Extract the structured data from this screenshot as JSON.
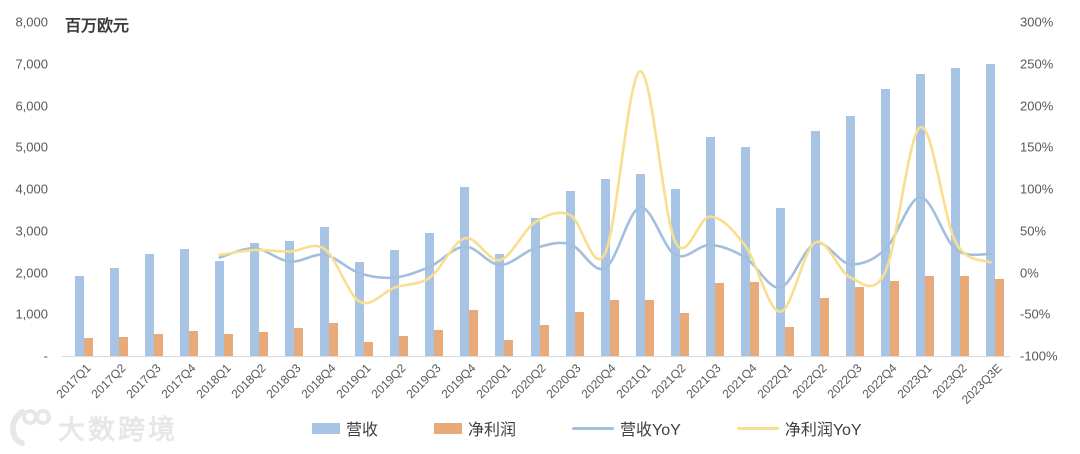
{
  "chart": {
    "watermark_text": "大数跨境"
  },
  "chart_data": {
    "type": "combo",
    "title": "",
    "categories": [
      "2017Q1",
      "2017Q2",
      "2017Q3",
      "2017Q4",
      "2018Q1",
      "2018Q2",
      "2018Q3",
      "2018Q4",
      "2019Q1",
      "2019Q2",
      "2019Q3",
      "2019Q4",
      "2020Q1",
      "2020Q2",
      "2020Q3",
      "2020Q4",
      "2021Q1",
      "2021Q2",
      "2021Q3",
      "2021Q4",
      "2022Q1",
      "2022Q2",
      "2022Q3",
      "2022Q4",
      "2023Q1",
      "2023Q2",
      "2023Q3E"
    ],
    "series": [
      {
        "name": "营收",
        "type": "bar",
        "axis": "left",
        "color": "#A8C4E5",
        "values": [
          1920,
          2100,
          2440,
          2560,
          2270,
          2700,
          2750,
          3100,
          2240,
          2550,
          2950,
          4050,
          2450,
          3300,
          3950,
          4250,
          4350,
          4000,
          5250,
          5000,
          3550,
          5400,
          5750,
          6400,
          6750,
          6900,
          7000
        ]
      },
      {
        "name": "净利润",
        "type": "bar",
        "axis": "left",
        "color": "#E9AA7A",
        "values": [
          430,
          450,
          530,
          610,
          520,
          570,
          660,
          780,
          340,
          470,
          620,
          1100,
          390,
          750,
          1050,
          1350,
          1330,
          1030,
          1750,
          1780,
          700,
          1400,
          1650,
          1800,
          1920,
          1920,
          1850
        ]
      },
      {
        "name": "营收YoY",
        "type": "line",
        "axis": "right",
        "color": "#A4BEDE",
        "values": [
          null,
          null,
          null,
          null,
          18,
          29,
          13,
          21,
          -1,
          -6,
          7,
          31,
          9,
          29,
          34,
          5,
          78,
          21,
          33,
          18,
          -18,
          35,
          10,
          28,
          90,
          28,
          22
        ]
      },
      {
        "name": "净利润YoY",
        "type": "line",
        "axis": "right",
        "color": "#F9DE8F",
        "values": [
          null,
          null,
          null,
          null,
          21,
          27,
          25,
          28,
          -35,
          -18,
          -6,
          41,
          15,
          60,
          69,
          23,
          241,
          37,
          67,
          32,
          -47,
          36,
          -6,
          1,
          174,
          37,
          12
        ]
      }
    ],
    "left_axis": {
      "title": "百万欧元",
      "range": [
        0,
        8000
      ],
      "tick_values": [
        8000,
        7000,
        6000,
        5000,
        4000,
        3000,
        2000,
        1000,
        0
      ],
      "tick_labels": [
        "8,000",
        "7,000",
        "6,000",
        "5,000",
        "4,000",
        "3,000",
        "2,000",
        "1,000",
        "-"
      ]
    },
    "right_axis": {
      "range": [
        -100,
        300
      ],
      "tick_values": [
        300,
        250,
        200,
        150,
        100,
        50,
        0,
        -50,
        -100
      ],
      "tick_labels": [
        "300%",
        "250%",
        "200%",
        "150%",
        "100%",
        "50%",
        "0%",
        "-50%",
        "-100%"
      ]
    },
    "x_axis": {
      "rotation": -45
    },
    "grid": false,
    "legend_position": "bottom"
  }
}
